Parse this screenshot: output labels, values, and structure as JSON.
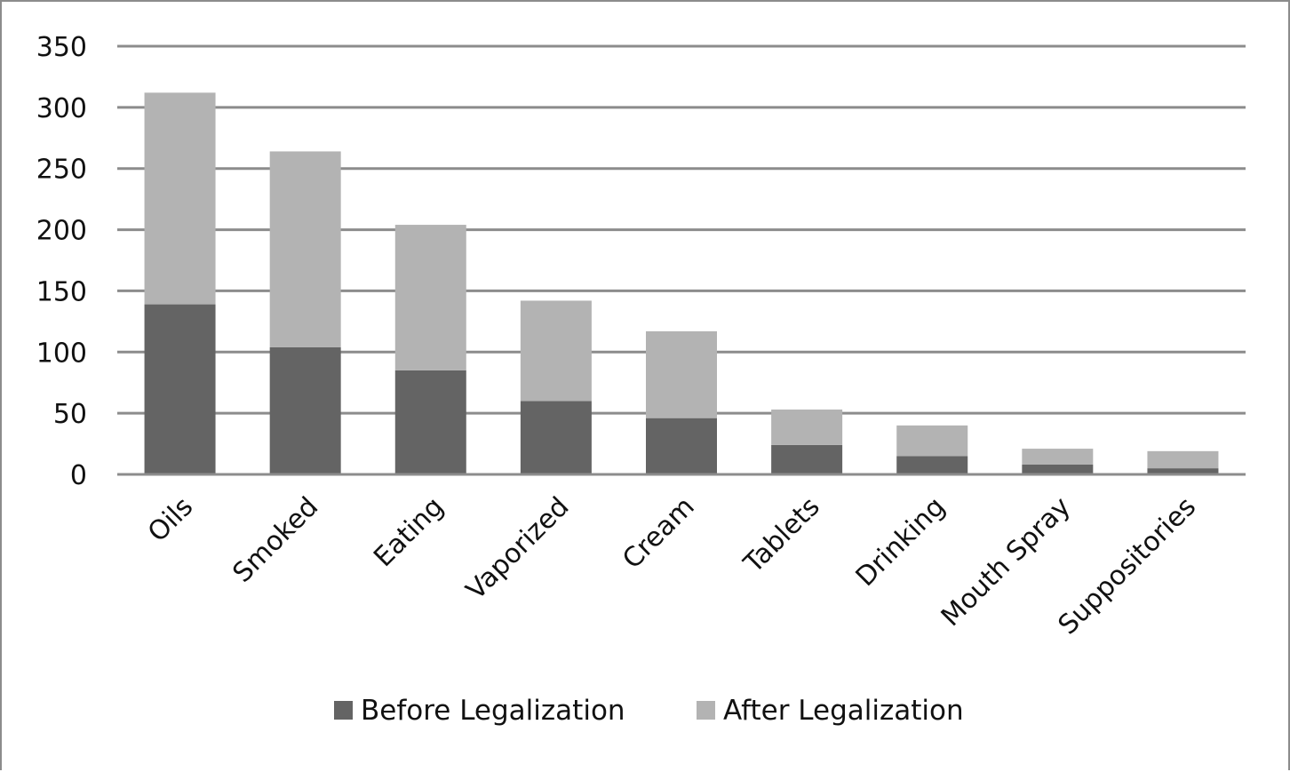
{
  "chart_data": {
    "type": "bar",
    "stacked": true,
    "categories": [
      "Oils",
      "Smoked",
      "Eating",
      "Vaporized",
      "Cream",
      "Tablets",
      "Drinking",
      "Mouth Spray",
      "Suppositories"
    ],
    "series": [
      {
        "name": "Before Legalization",
        "color": "#646464",
        "values": [
          139,
          104,
          85,
          60,
          46,
          24,
          15,
          8,
          5
        ]
      },
      {
        "name": "After Legalization",
        "color": "#b3b3b3",
        "values": [
          173,
          160,
          119,
          82,
          71,
          29,
          25,
          13,
          14
        ]
      }
    ],
    "title": "",
    "xlabel": "",
    "ylabel": "",
    "ylim": [
      0,
      350
    ],
    "yticks": [
      0,
      50,
      100,
      150,
      200,
      250,
      300,
      350
    ],
    "grid": "horizontal",
    "legend_position": "bottom",
    "colors": {
      "gridline": "#8c8c8c",
      "axis": "#8c8c8c",
      "frame": "#8c8c8c"
    }
  }
}
